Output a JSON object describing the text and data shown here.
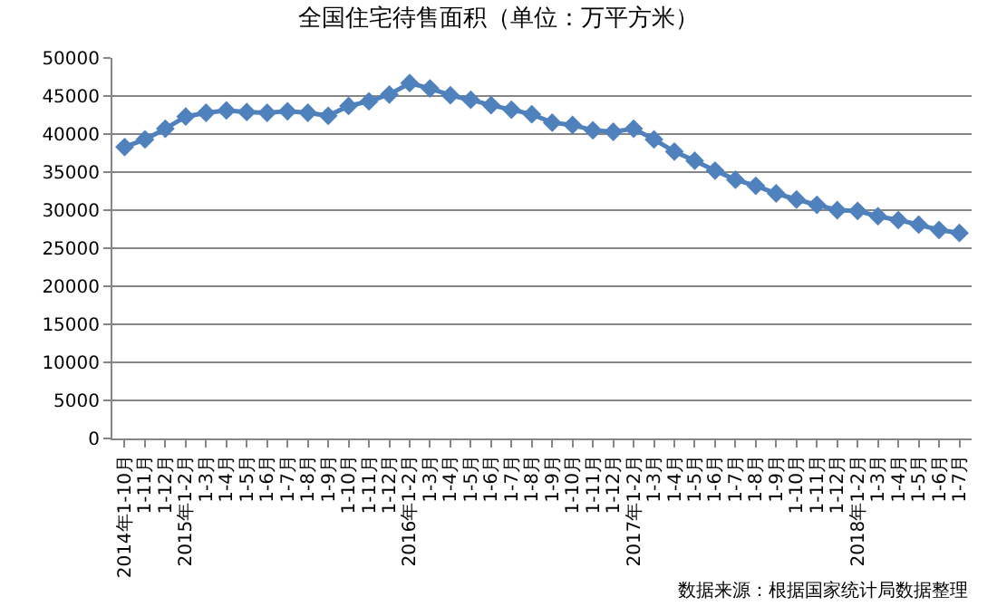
{
  "chart_data": {
    "type": "line",
    "title": "全国住宅待售面积（单位：万平方米）",
    "categories": [
      "2014年1-10月",
      "1-11月",
      "1-12月",
      "2015年1-2月",
      "1-3月",
      "1-4月",
      "1-5月",
      "1-6月",
      "1-7月",
      "1-8月",
      "1-9月",
      "1-10月",
      "1-11月",
      "1-12月",
      "2016年1-2月",
      "1-3月",
      "1-4月",
      "1-5月",
      "1-6月",
      "1-7月",
      "1-8月",
      "1-9月",
      "1-10月",
      "1-11月",
      "1-12月",
      "2017年1-2月",
      "1-3月",
      "1-4月",
      "1-5月",
      "1-6月",
      "1-7月",
      "1-8月",
      "1-9月",
      "1-10月",
      "1-11月",
      "1-12月",
      "2018年1-2月",
      "1-3月",
      "1-4月",
      "1-5月",
      "1-6月",
      "1-7月"
    ],
    "series": [
      {
        "color": "#4f81bd",
        "values": [
          38300,
          39300,
          40700,
          42300,
          42800,
          43100,
          42900,
          42800,
          43000,
          42800,
          42400,
          43700,
          44300,
          45200,
          46700,
          46000,
          45100,
          44500,
          43800,
          43200,
          42600,
          41500,
          41200,
          40500,
          40300,
          40700,
          39300,
          37700,
          36500,
          35200,
          34000,
          33200,
          32200,
          31400,
          30700,
          30000,
          29900,
          29200,
          28700,
          28100,
          27400,
          27000
        ]
      }
    ],
    "ylim": [
      0,
      50000
    ],
    "yticks": [
      0,
      5000,
      10000,
      15000,
      20000,
      25000,
      30000,
      35000,
      40000,
      45000,
      50000
    ],
    "grid": "y",
    "marker": "diamond",
    "line_style": "solid",
    "legend": false,
    "annotations": [
      "数据来源：根据国家统计局数据整理"
    ]
  }
}
